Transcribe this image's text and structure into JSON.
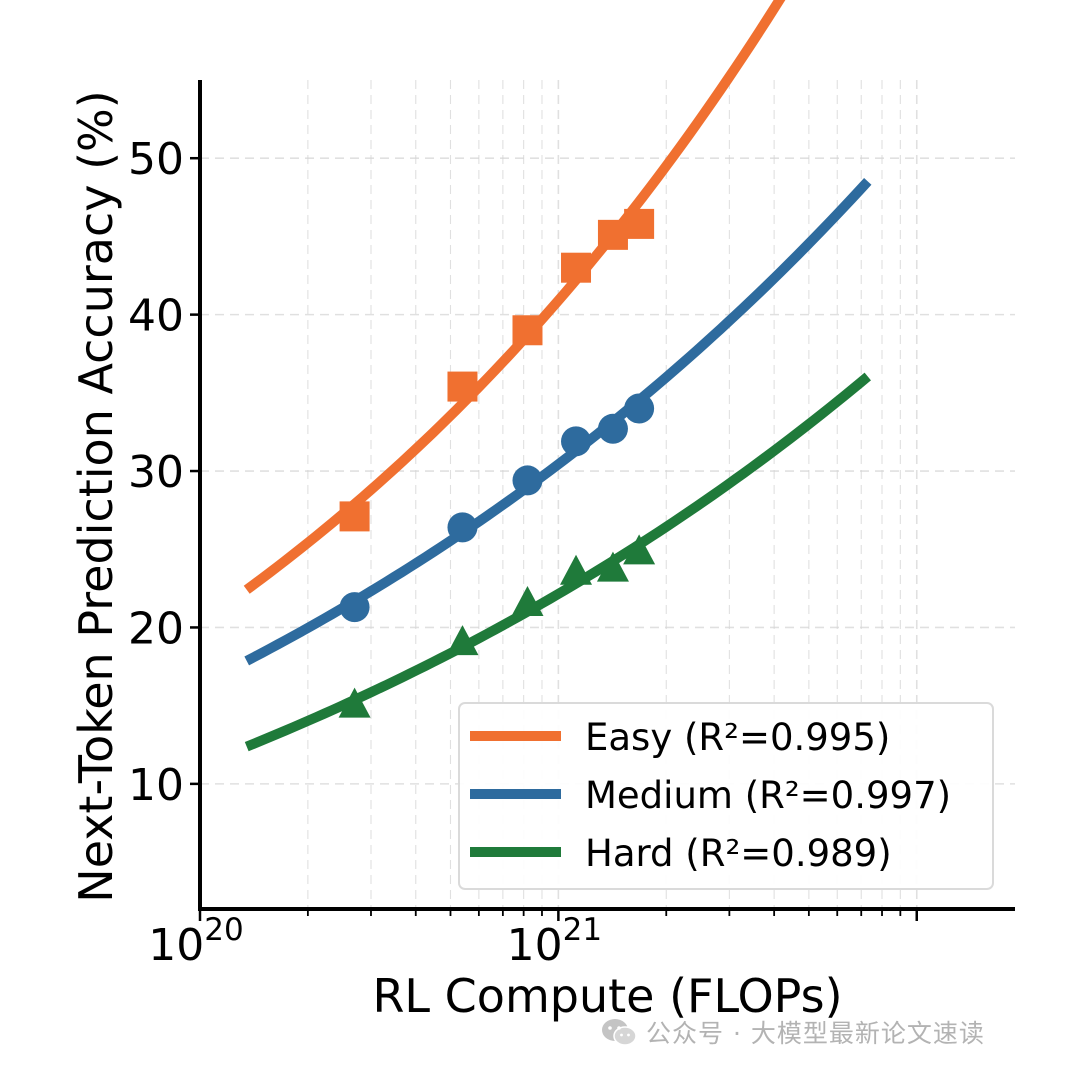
{
  "chart_data": {
    "type": "line",
    "xscale": "log",
    "xlabel": "RL Compute (FLOPs)",
    "ylabel": "Next-Token Prediction Accuracy (%)",
    "xlim": [
      1e+20,
      1.88e+22
    ],
    "ylim": [
      2,
      55
    ],
    "x_ticks": [
      {
        "value": 1e+20,
        "base": "10",
        "exp": "20"
      },
      {
        "value": 1e+21,
        "base": "10",
        "exp": "21"
      }
    ],
    "y_ticks": [
      {
        "value": 10,
        "label": "10"
      },
      {
        "value": 20,
        "label": "20"
      },
      {
        "value": 30,
        "label": "30"
      },
      {
        "value": 40,
        "label": "40"
      },
      {
        "value": 50,
        "label": "50"
      }
    ],
    "grid": true,
    "legend_position": "lower-right",
    "series": [
      {
        "name": "Easy",
        "legend_label": "Easy (R²=0.995)",
        "color": "#f07030",
        "marker": "square",
        "points_x": [
          2.7e+20,
          5.4e+20,
          8.2e+20,
          1.12e+21,
          1.42e+21,
          1.68e+21
        ],
        "points_y": [
          27.1,
          35.4,
          39.0,
          43.0,
          45.1,
          45.8
        ],
        "fit": {
          "a": 14.05,
          "b": 1.05,
          "c": -0.2,
          "x_min": 1.35e+20,
          "x_max": 7.3e+21
        }
      },
      {
        "name": "Medium",
        "legend_label": "Medium (R²=0.997)",
        "color": "#2e6b9e",
        "marker": "circle",
        "points_x": [
          2.7e+20,
          5.4e+20,
          8.2e+20,
          1.12e+21,
          1.42e+21,
          1.68e+21
        ],
        "points_y": [
          21.3,
          26.4,
          29.4,
          31.9,
          32.7,
          34.0
        ],
        "fit": {
          "a": 10.6,
          "b": 1.0,
          "c": 0.0,
          "x_min": 1.35e+20,
          "x_max": 7.3e+21
        }
      },
      {
        "name": "Hard",
        "legend_label": "Hard (R²=0.989)",
        "color": "#1f7a3a",
        "marker": "triangle",
        "points_x": [
          2.7e+20,
          5.4e+20,
          8.2e+20,
          1.12e+21,
          1.42e+21,
          1.68e+21
        ],
        "points_y": [
          15.0,
          19.0,
          21.5,
          23.5,
          23.7,
          24.8
        ],
        "fit": {
          "a": 12.1,
          "b": 0.8,
          "c": -0.2,
          "x_min": 1.35e+20,
          "x_max": 7.3e+21
        }
      }
    ]
  },
  "watermark": {
    "text": "公众号 · 大模型最新论文速读",
    "icon": "wechat-icon"
  }
}
